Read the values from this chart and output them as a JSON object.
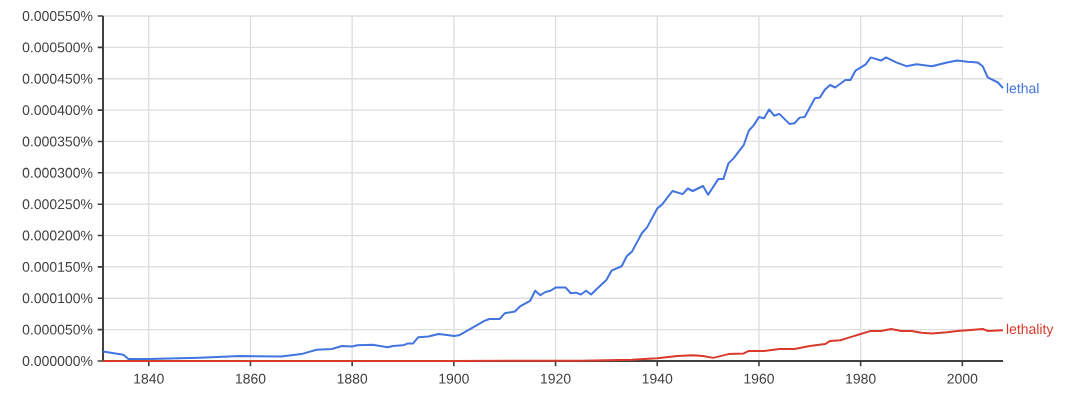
{
  "chart_data": {
    "type": "line",
    "xlim": [
      1831,
      2008
    ],
    "ylim": [
      0,
      0.00055
    ],
    "xticks": [
      1840,
      1860,
      1880,
      1900,
      1920,
      1940,
      1960,
      1980,
      2000
    ],
    "yticks": [
      {
        "value": 0,
        "label": "0.000000%"
      },
      {
        "value": 5e-05,
        "label": "0.000050%"
      },
      {
        "value": 0.0001,
        "label": "0.000100%"
      },
      {
        "value": 0.00015,
        "label": "0.000150%"
      },
      {
        "value": 0.0002,
        "label": "0.000200%"
      },
      {
        "value": 0.00025,
        "label": "0.000250%"
      },
      {
        "value": 0.0003,
        "label": "0.000300%"
      },
      {
        "value": 0.00035,
        "label": "0.000350%"
      },
      {
        "value": 0.0004,
        "label": "0.000400%"
      },
      {
        "value": 0.00045,
        "label": "0.000450%"
      },
      {
        "value": 0.0005,
        "label": "0.000500%"
      },
      {
        "value": 0.00055,
        "label": "0.000550%"
      }
    ],
    "grid": true,
    "series": [
      {
        "name": "lethal",
        "color": "#4374e0",
        "x": [
          1831,
          1835,
          1836,
          1840,
          1850,
          1858,
          1866,
          1870,
          1873,
          1876,
          1878,
          1880,
          1881,
          1884,
          1887,
          1888,
          1890,
          1891,
          1892,
          1893,
          1895,
          1897,
          1899,
          1900,
          1901,
          1903,
          1906,
          1907,
          1909,
          1910,
          1912,
          1913,
          1915,
          1916,
          1917,
          1918,
          1919,
          1920,
          1922,
          1923,
          1924,
          1925,
          1926,
          1927,
          1928,
          1930,
          1931,
          1933,
          1934,
          1935,
          1937,
          1938,
          1940,
          1941,
          1943,
          1945,
          1946,
          1947,
          1949,
          1950,
          1952,
          1953,
          1954,
          1955,
          1957,
          1958,
          1959,
          1960,
          1961,
          1962,
          1963,
          1964,
          1966,
          1967,
          1968,
          1969,
          1971,
          1972,
          1973,
          1974,
          1975,
          1977,
          1978,
          1979,
          1981,
          1982,
          1984,
          1985,
          1987,
          1989,
          1991,
          1994,
          1997,
          1999,
          2001,
          2003,
          2004,
          2005,
          2007,
          2008
        ],
        "values": [
          1.5e-05,
          1e-05,
          3e-06,
          3e-06,
          5e-06,
          8e-06,
          7e-06,
          1.1e-05,
          1.8e-05,
          1.9e-05,
          2.4e-05,
          2.3e-05,
          2.5e-05,
          2.6e-05,
          2.2e-05,
          2.4e-05,
          2.5e-05,
          2.8e-05,
          2.8e-05,
          3.8e-05,
          3.9e-05,
          4.3e-05,
          4.1e-05,
          4e-05,
          4.1e-05,
          5e-05,
          6.4e-05,
          6.7e-05,
          6.7e-05,
          7.6e-05,
          7.9e-05,
          8.7e-05,
          9.6e-05,
          0.000112,
          0.000105,
          0.00011,
          0.000112,
          0.000117,
          0.000117,
          0.000108,
          0.000109,
          0.000106,
          0.000112,
          0.000106,
          0.000114,
          0.000129,
          0.000144,
          0.000151,
          0.000167,
          0.000174,
          0.000204,
          0.000213,
          0.000243,
          0.00025,
          0.000271,
          0.000266,
          0.000275,
          0.000271,
          0.000279,
          0.000265,
          0.00029,
          0.00029,
          0.000315,
          0.000323,
          0.000344,
          0.000367,
          0.000376,
          0.000389,
          0.000387,
          0.000401,
          0.000391,
          0.000394,
          0.000378,
          0.000379,
          0.000388,
          0.000389,
          0.000419,
          0.00042,
          0.000433,
          0.00044,
          0.000436,
          0.000448,
          0.000448,
          0.000463,
          0.000473,
          0.000484,
          0.000479,
          0.000484,
          0.000476,
          0.00047,
          0.000473,
          0.00047,
          0.000476,
          0.000479,
          0.000477,
          0.000476,
          0.00047,
          0.000452,
          0.000444,
          0.000435
        ]
      },
      {
        "name": "lethality",
        "color": "#d93a2b",
        "x": [
          1831,
          1900,
          1925,
          1935,
          1940,
          1944,
          1947,
          1949,
          1951,
          1954,
          1957,
          1958,
          1961,
          1964,
          1967,
          1970,
          1973,
          1974,
          1976,
          1978,
          1980,
          1982,
          1984,
          1986,
          1988,
          1990,
          1992,
          1994,
          1997,
          1999,
          2001,
          2004,
          2005,
          2008
        ],
        "values": [
          0,
          0,
          5e-07,
          2e-06,
          4.5e-06,
          8e-06,
          9e-06,
          8e-06,
          5e-06,
          1.1e-05,
          1.2e-05,
          1.6e-05,
          1.6e-05,
          1.9e-05,
          1.9e-05,
          2.4e-05,
          2.7e-05,
          3.2e-05,
          3.3e-05,
          3.8e-05,
          4.3e-05,
          4.8e-05,
          4.8e-05,
          5.1e-05,
          4.8e-05,
          4.8e-05,
          4.5e-05,
          4.4e-05,
          4.6e-05,
          4.8e-05,
          4.9e-05,
          5.1e-05,
          4.8e-05,
          4.9e-05
        ]
      }
    ]
  }
}
